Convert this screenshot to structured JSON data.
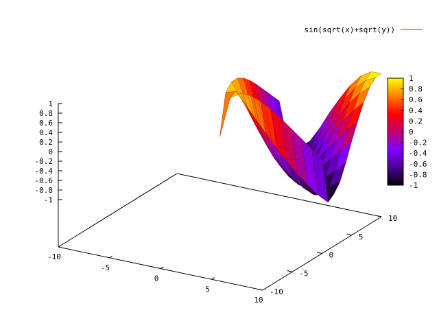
{
  "chart_data": {
    "type": "surface",
    "legend": {
      "entries": [
        {
          "label": "sin(sqrt(x)+sqrt(y))",
          "color": "#ff0000"
        }
      ]
    },
    "x_ticks": [
      "-10",
      "-5",
      "0",
      "5",
      "10"
    ],
    "y_ticks": [
      "-10",
      "-5",
      "0",
      "5",
      "10"
    ],
    "z_ticks": [
      "1",
      "0.8",
      "0.6",
      "0.4",
      "0.2",
      "0",
      "-0.2",
      "-0.4",
      "-0.6",
      "-0.8",
      "-1"
    ],
    "xlim": [
      -10,
      10
    ],
    "ylim": [
      -10,
      10
    ],
    "zlim": [
      -1,
      1
    ],
    "colorbox": {
      "ticks": [
        "1",
        "0.8",
        "0.6",
        "0.4",
        "0.2",
        "0",
        "-0.2",
        "-0.4",
        "-0.6",
        "-0.8",
        "-1"
      ],
      "palette": [
        "#000000",
        "#4b0097",
        "#8000ff",
        "#c00070",
        "#ff0000",
        "#ff8000",
        "#ffff00"
      ],
      "range": [
        -1,
        1
      ]
    },
    "series": [
      {
        "name": "sin(sqrt(x)+sqrt(y))",
        "x_samples": [
          0,
          1,
          2,
          3,
          4,
          5,
          6,
          7,
          8,
          9,
          10
        ],
        "y_samples": [
          0,
          1,
          2,
          3,
          4,
          5,
          6,
          7,
          8,
          9,
          10
        ],
        "z": [
          [
            0.0,
            0.841,
            0.988,
            0.987,
            0.909,
            0.786,
            0.638,
            0.474,
            0.308,
            0.141,
            -0.021
          ],
          [
            0.841,
            0.909,
            0.659,
            0.401,
            0.141,
            -0.106,
            -0.334,
            -0.542,
            -0.725,
            -0.881,
            -0.994
          ],
          [
            0.988,
            0.659,
            0.308,
            -0.006,
            -0.29,
            -0.537,
            -0.744,
            -0.904,
            -1.0,
            -0.979,
            -0.899
          ],
          [
            0.987,
            0.401,
            -0.006,
            -0.338,
            -0.62,
            -0.836,
            -0.966,
            -1.0,
            -0.957,
            -0.863,
            -0.727
          ],
          [
            0.909,
            0.141,
            -0.29,
            -0.62,
            -0.851,
            -0.978,
            -0.999,
            -0.93,
            -0.787,
            -0.606,
            -0.401
          ],
          [
            0.786,
            -0.106,
            -0.537,
            -0.836,
            -0.978,
            -0.984,
            -0.878,
            -0.7,
            -0.482,
            -0.249,
            -0.021
          ],
          [
            0.638,
            -0.334,
            -0.744,
            -0.966,
            -0.999,
            -0.878,
            -0.668,
            -0.417,
            -0.158,
            0.089,
            0.316
          ],
          [
            0.474,
            -0.542,
            -0.904,
            -1.0,
            -0.93,
            -0.7,
            -0.417,
            -0.122,
            0.158,
            0.41,
            0.625
          ],
          [
            0.308,
            -0.725,
            -1.0,
            -0.957,
            -0.787,
            -0.482,
            -0.158,
            0.158,
            0.441,
            0.679,
            0.859
          ],
          [
            0.141,
            -0.881,
            -0.979,
            -0.863,
            -0.606,
            -0.249,
            0.089,
            0.41,
            0.679,
            0.878,
            0.99
          ],
          [
            -0.021,
            -0.994,
            -0.899,
            -0.727,
            -0.401,
            -0.021,
            0.316,
            0.625,
            0.859,
            0.99,
            0.999
          ]
        ]
      }
    ]
  }
}
